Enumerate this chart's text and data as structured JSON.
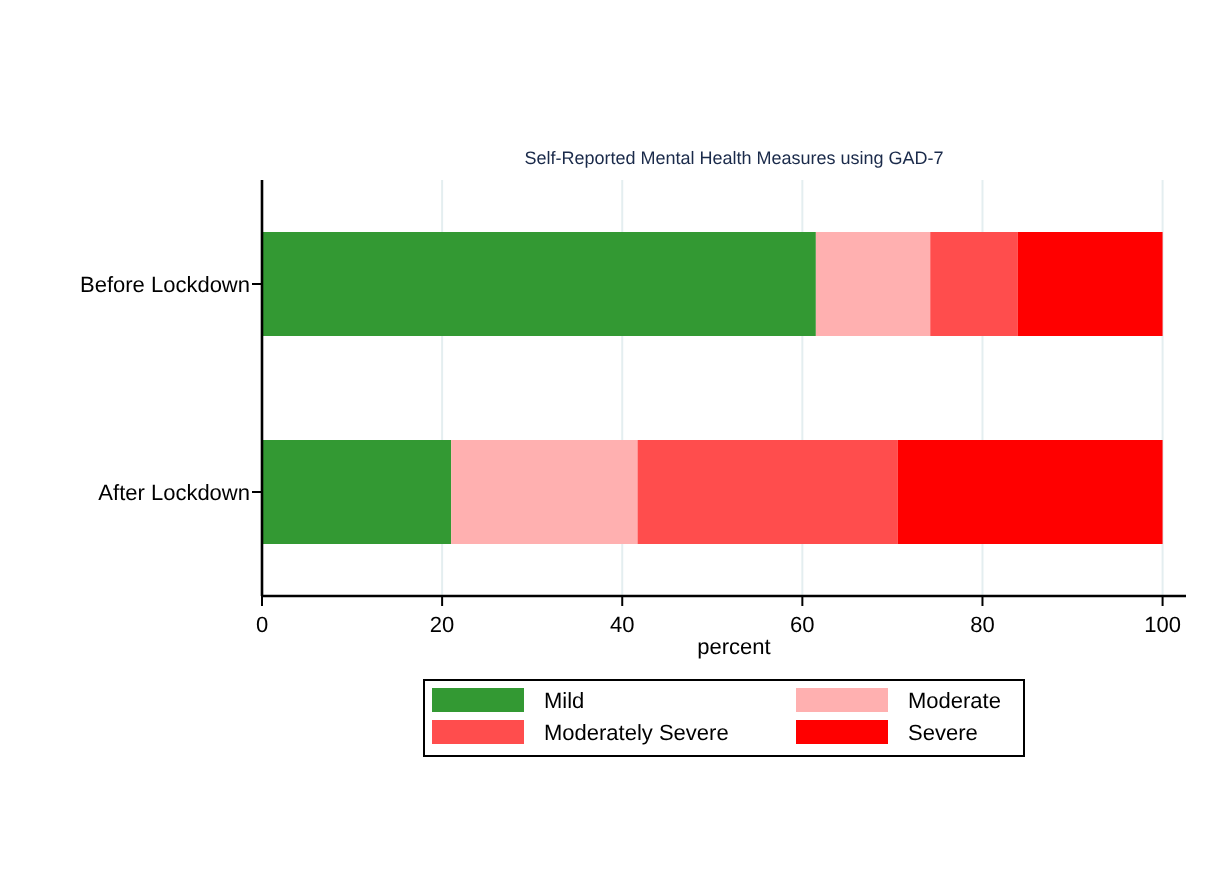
{
  "chart_data": {
    "type": "bar",
    "orientation": "horizontal",
    "stacked": true,
    "title": "Self-Reported Mental Health Measures using GAD-7",
    "xlabel": "percent",
    "categories": [
      "Before Lockdown",
      "After Lockdown"
    ],
    "series": [
      {
        "name": "Mild",
        "color": "#339933",
        "values": [
          61.5,
          21.0
        ]
      },
      {
        "name": "Moderate",
        "color": "#ffb0b0",
        "values": [
          12.7,
          20.7
        ]
      },
      {
        "name": "Moderately Severe",
        "color": "#ff4d4d",
        "values": [
          9.7,
          28.9
        ]
      },
      {
        "name": "Severe",
        "color": "#ff0000",
        "values": [
          16.1,
          29.4
        ]
      }
    ],
    "xlim": [
      0,
      102.6
    ],
    "xticks": [
      0,
      20,
      40,
      60,
      80,
      100
    ],
    "grid": "x",
    "legend": "bottom"
  }
}
